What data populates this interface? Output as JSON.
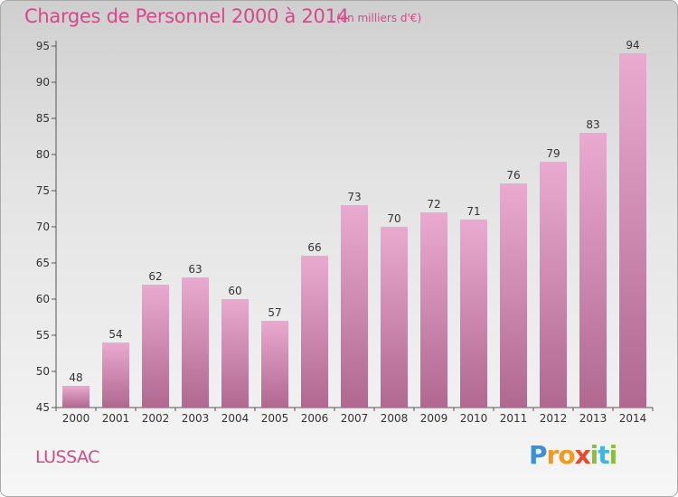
{
  "chart_data": {
    "type": "bar",
    "title": "Charges de Personnel 2000 à 2014",
    "subtitle": "(en milliers d'€)",
    "categories": [
      "2000",
      "2001",
      "2002",
      "2003",
      "2004",
      "2005",
      "2006",
      "2007",
      "2008",
      "2009",
      "2010",
      "2011",
      "2012",
      "2013",
      "2014"
    ],
    "values": [
      48,
      54,
      62,
      63,
      60,
      57,
      66,
      73,
      70,
      72,
      71,
      76,
      79,
      83,
      94
    ],
    "ylim": [
      45,
      95
    ],
    "yticks": [
      45,
      50,
      55,
      60,
      65,
      70,
      75,
      80,
      85,
      90,
      95
    ],
    "grid": false,
    "colors": {
      "bar_light": "#e9a9cd",
      "bar_dark": "#b3668f",
      "title": "#d44a88"
    }
  },
  "footer": {
    "town": "LUSSAC",
    "logo": {
      "p": "P",
      "r": "r",
      "o": "o",
      "x": "x",
      "i1": "i",
      "t": "t",
      "i2": "i"
    }
  }
}
